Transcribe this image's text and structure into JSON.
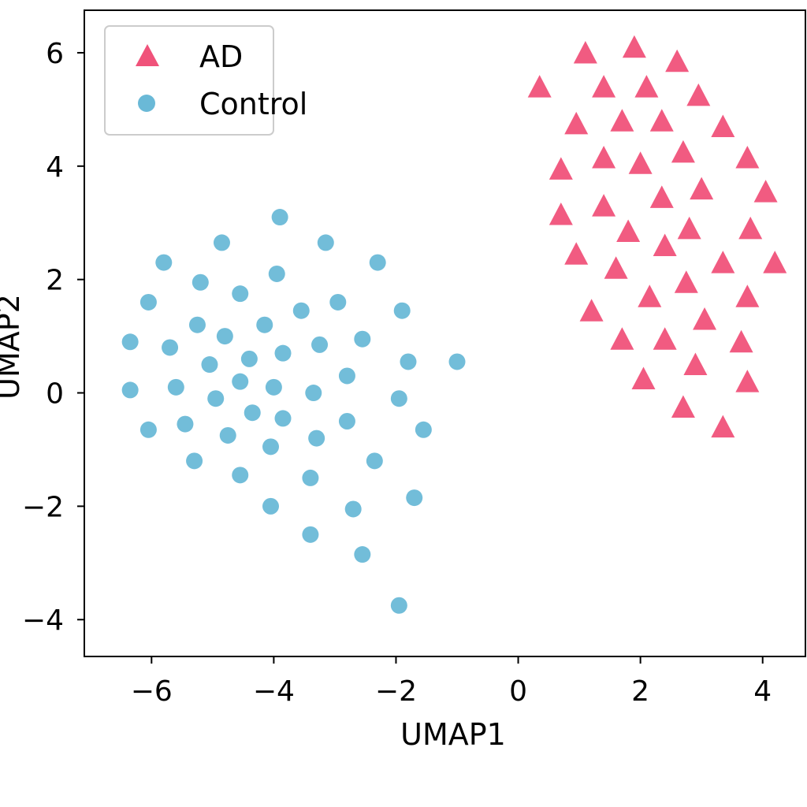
{
  "chart_data": {
    "type": "scatter",
    "title": "",
    "xlabel": "UMAP1",
    "ylabel": "UMAP2",
    "xlim": [
      -7.1,
      4.7
    ],
    "ylim": [
      -4.65,
      6.75
    ],
    "xticks": [
      -6,
      -4,
      -2,
      0,
      2,
      4
    ],
    "yticks": [
      -4,
      -2,
      0,
      2,
      4,
      6
    ],
    "xtick_labels": [
      "−6",
      "−4",
      "−2",
      "0",
      "2",
      "4"
    ],
    "ytick_labels": [
      "−4",
      "−2",
      "0",
      "2",
      "4",
      "6"
    ],
    "grid": false,
    "legend": {
      "placement": "top-left",
      "entries": [
        "AD",
        "Control"
      ]
    },
    "series": [
      {
        "name": "AD",
        "marker": "triangle",
        "color": "#f0527a",
        "points": [
          [
            1.1,
            6.0
          ],
          [
            1.9,
            6.1
          ],
          [
            2.6,
            5.85
          ],
          [
            0.35,
            5.4
          ],
          [
            1.4,
            5.4
          ],
          [
            2.1,
            5.4
          ],
          [
            2.95,
            5.25
          ],
          [
            0.95,
            4.75
          ],
          [
            1.7,
            4.8
          ],
          [
            2.35,
            4.8
          ],
          [
            3.35,
            4.7
          ],
          [
            0.7,
            3.95
          ],
          [
            1.4,
            4.15
          ],
          [
            2.0,
            4.05
          ],
          [
            2.7,
            4.25
          ],
          [
            3.75,
            4.15
          ],
          [
            0.7,
            3.15
          ],
          [
            1.4,
            3.3
          ],
          [
            2.35,
            3.45
          ],
          [
            3.0,
            3.6
          ],
          [
            4.05,
            3.55
          ],
          [
            1.8,
            2.85
          ],
          [
            2.8,
            2.9
          ],
          [
            3.8,
            2.9
          ],
          [
            0.95,
            2.45
          ],
          [
            1.6,
            2.2
          ],
          [
            2.4,
            2.6
          ],
          [
            3.35,
            2.3
          ],
          [
            4.2,
            2.3
          ],
          [
            2.15,
            1.7
          ],
          [
            2.75,
            1.95
          ],
          [
            3.75,
            1.7
          ],
          [
            1.2,
            1.45
          ],
          [
            3.05,
            1.3
          ],
          [
            1.7,
            0.95
          ],
          [
            2.4,
            0.95
          ],
          [
            3.65,
            0.9
          ],
          [
            2.9,
            0.5
          ],
          [
            2.05,
            0.25
          ],
          [
            3.75,
            0.2
          ],
          [
            2.7,
            -0.25
          ],
          [
            3.35,
            -0.6
          ]
        ]
      },
      {
        "name": "Control",
        "marker": "circle",
        "color": "#6ab9d7",
        "points": [
          [
            -3.9,
            3.1
          ],
          [
            -4.85,
            2.65
          ],
          [
            -3.15,
            2.65
          ],
          [
            -5.8,
            2.3
          ],
          [
            -2.3,
            2.3
          ],
          [
            -3.95,
            2.1
          ],
          [
            -5.2,
            1.95
          ],
          [
            -4.55,
            1.75
          ],
          [
            -6.05,
            1.6
          ],
          [
            -2.95,
            1.6
          ],
          [
            -3.55,
            1.45
          ],
          [
            -1.9,
            1.45
          ],
          [
            -5.25,
            1.2
          ],
          [
            -4.15,
            1.2
          ],
          [
            -4.8,
            1.0
          ],
          [
            -2.55,
            0.95
          ],
          [
            -6.35,
            0.9
          ],
          [
            -5.7,
            0.8
          ],
          [
            -3.25,
            0.85
          ],
          [
            -3.85,
            0.7
          ],
          [
            -4.4,
            0.6
          ],
          [
            -1.8,
            0.55
          ],
          [
            -1.0,
            0.55
          ],
          [
            -5.05,
            0.5
          ],
          [
            -2.8,
            0.3
          ],
          [
            -4.55,
            0.2
          ],
          [
            -6.35,
            0.05
          ],
          [
            -5.6,
            0.1
          ],
          [
            -4.0,
            0.1
          ],
          [
            -3.35,
            0.0
          ],
          [
            -1.95,
            -0.1
          ],
          [
            -4.95,
            -0.1
          ],
          [
            -4.35,
            -0.35
          ],
          [
            -3.85,
            -0.45
          ],
          [
            -2.8,
            -0.5
          ],
          [
            -5.45,
            -0.55
          ],
          [
            -6.05,
            -0.65
          ],
          [
            -1.55,
            -0.65
          ],
          [
            -4.75,
            -0.75
          ],
          [
            -3.3,
            -0.8
          ],
          [
            -4.05,
            -0.95
          ],
          [
            -5.3,
            -1.2
          ],
          [
            -2.35,
            -1.2
          ],
          [
            -4.55,
            -1.45
          ],
          [
            -3.4,
            -1.5
          ],
          [
            -1.7,
            -1.85
          ],
          [
            -4.05,
            -2.0
          ],
          [
            -2.7,
            -2.05
          ],
          [
            -3.4,
            -2.5
          ],
          [
            -2.55,
            -2.85
          ],
          [
            -1.95,
            -3.75
          ]
        ]
      }
    ]
  }
}
